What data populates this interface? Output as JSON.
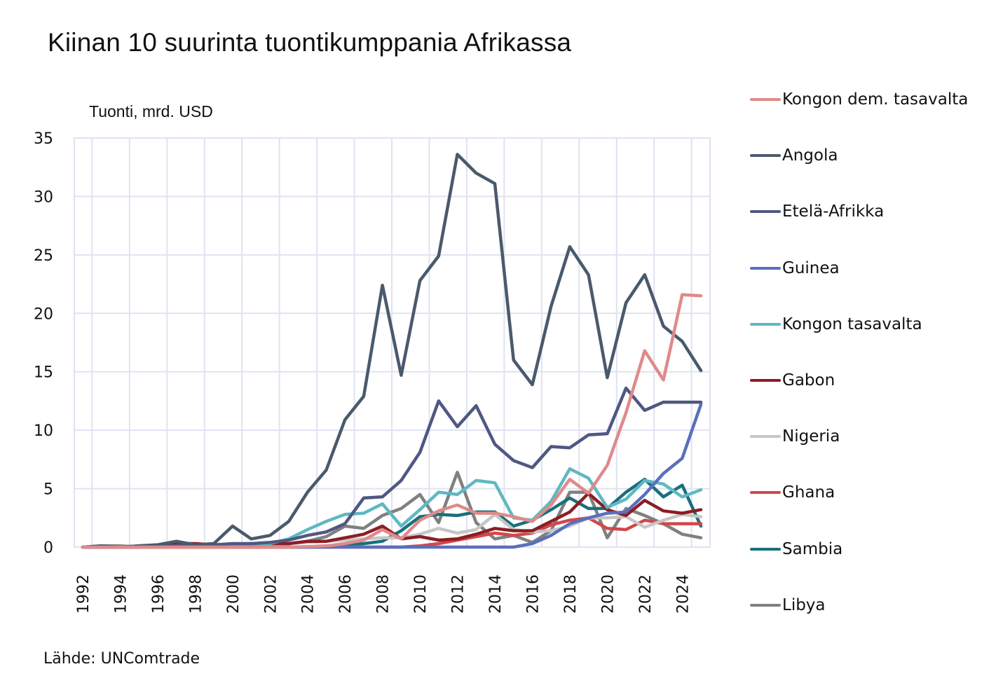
{
  "chart_data": {
    "type": "line",
    "title": "Kiinan 10 suurinta tuontikumppania Afrikassa",
    "ylabel": "Tuonti, mrd. USD",
    "xlabel": "",
    "source": "Lähde: UNComtrade",
    "ylim": [
      0,
      35
    ],
    "yticks": [
      "0",
      "5",
      "10",
      "15",
      "20",
      "25",
      "30",
      "35"
    ],
    "xlim": [
      1992,
      2025
    ],
    "xticks": [
      "1992",
      "1994",
      "1996",
      "1998",
      "2000",
      "2002",
      "2004",
      "2006",
      "2008",
      "2010",
      "2012",
      "2014",
      "2016",
      "2018",
      "2020",
      "2022",
      "2024"
    ],
    "grid": true,
    "legend_position": "right",
    "x": [
      1992,
      1993,
      1994,
      1995,
      1996,
      1997,
      1998,
      1999,
      2000,
      2001,
      2002,
      2003,
      2004,
      2005,
      2006,
      2007,
      2008,
      2009,
      2010,
      2011,
      2012,
      2013,
      2014,
      2015,
      2016,
      2017,
      2018,
      2019,
      2020,
      2021,
      2022,
      2023,
      2024,
      2025
    ],
    "series": [
      {
        "name": "Kongon dem. tasavalta",
        "color": "#e08a8a",
        "values": [
          0,
          0,
          0,
          0,
          0,
          0,
          0,
          0,
          0,
          0,
          0,
          0,
          0.05,
          0.1,
          0.3,
          0.6,
          1.5,
          0.7,
          2.3,
          3.1,
          3.6,
          2.9,
          2.9,
          2.6,
          2.2,
          3.6,
          5.8,
          4.6,
          7.0,
          11.5,
          16.8,
          14.3,
          21.6,
          21.5
        ]
      },
      {
        "name": "Angola",
        "color": "#4a5a6c",
        "values": [
          0,
          0.1,
          0,
          0.1,
          0.2,
          0.5,
          0.2,
          0.3,
          1.8,
          0.7,
          1.0,
          2.2,
          4.7,
          6.6,
          10.9,
          12.9,
          22.4,
          14.7,
          22.8,
          24.9,
          33.6,
          32.0,
          31.1,
          16.0,
          13.9,
          20.6,
          25.7,
          23.3,
          14.5,
          20.9,
          23.3,
          18.9,
          17.6,
          15.1
        ]
      },
      {
        "name": "Etelä-Afrikka",
        "color": "#4f5882",
        "values": [
          0,
          0,
          0,
          0,
          0.1,
          0.1,
          0.2,
          0.2,
          0.3,
          0.3,
          0.4,
          0.6,
          1.0,
          1.3,
          2.0,
          4.2,
          4.3,
          5.7,
          8.1,
          12.5,
          10.3,
          12.1,
          8.8,
          7.4,
          6.8,
          8.6,
          8.5,
          9.6,
          9.7,
          13.6,
          11.7,
          12.4,
          12.4,
          12.4
        ]
      },
      {
        "name": "Guinea",
        "color": "#5a6fbc",
        "values": [
          0,
          0,
          0,
          0,
          0,
          0,
          0,
          0,
          0,
          0,
          0,
          0,
          0,
          0,
          0,
          0,
          0,
          0,
          0,
          0,
          0,
          0,
          0,
          0,
          0.3,
          1.0,
          2.0,
          2.5,
          2.9,
          3.0,
          4.5,
          6.3,
          7.6,
          12.2
        ]
      },
      {
        "name": "Kongon tasavalta",
        "color": "#5fb8c2",
        "values": [
          0,
          0,
          0,
          0,
          0,
          0,
          0,
          0,
          0.2,
          0.3,
          0.3,
          0.7,
          1.5,
          2.2,
          2.8,
          2.9,
          3.7,
          1.8,
          3.2,
          4.7,
          4.5,
          5.7,
          5.5,
          2.5,
          2.3,
          3.9,
          6.7,
          5.9,
          3.4,
          4.1,
          5.7,
          5.4,
          4.3,
          4.9
        ]
      },
      {
        "name": "Gabon",
        "color": "#8b1e24",
        "values": [
          0,
          0,
          0,
          0.1,
          0.2,
          0.3,
          0.3,
          0.2,
          0.2,
          0.3,
          0.3,
          0.3,
          0.5,
          0.5,
          0.8,
          1.1,
          1.8,
          0.7,
          0.9,
          0.6,
          0.7,
          1.1,
          1.6,
          1.4,
          1.4,
          2.2,
          3.0,
          4.6,
          3.2,
          2.7,
          4.0,
          3.1,
          2.9,
          3.2
        ]
      },
      {
        "name": "Nigeria",
        "color": "#c6c6c6",
        "values": [
          0,
          0,
          0,
          0,
          0,
          0,
          0,
          0,
          0.1,
          0.1,
          0.2,
          0.3,
          0.4,
          0.5,
          0.6,
          0.7,
          0.8,
          0.8,
          1.1,
          1.6,
          1.2,
          1.5,
          2.8,
          1.5,
          1.3,
          1.4,
          1.8,
          2.5,
          2.5,
          2.6,
          1.7,
          2.3,
          2.8,
          2.6
        ]
      },
      {
        "name": "Ghana",
        "color": "#d2474a",
        "values": [
          0,
          0,
          0,
          0,
          0,
          0,
          0,
          0,
          0,
          0,
          0,
          0,
          0,
          0,
          0,
          0,
          0,
          0,
          0.1,
          0.3,
          0.6,
          0.9,
          1.2,
          1.0,
          1.2,
          1.9,
          2.3,
          2.5,
          1.6,
          1.5,
          2.3,
          2.0,
          2.0,
          2.0
        ]
      },
      {
        "name": "Sambia",
        "color": "#1a6f7c",
        "values": [
          0,
          0,
          0,
          0,
          0,
          0,
          0,
          0,
          0,
          0,
          0,
          0,
          0,
          0.1,
          0.2,
          0.3,
          0.5,
          1.4,
          2.6,
          2.8,
          2.7,
          3.0,
          3.0,
          1.8,
          2.3,
          3.2,
          4.2,
          3.3,
          3.3,
          4.7,
          5.8,
          4.3,
          5.3,
          1.8
        ]
      },
      {
        "name": "Libya",
        "color": "#808080",
        "values": [
          0,
          0.1,
          0.1,
          0,
          0.1,
          0.2,
          0.1,
          0.1,
          0.2,
          0.2,
          0.3,
          0.3,
          0.5,
          0.9,
          1.8,
          1.6,
          2.7,
          3.3,
          4.5,
          2.1,
          6.4,
          2.1,
          0.7,
          1.0,
          0.4,
          1.4,
          4.7,
          4.7,
          0.8,
          3.3,
          2.7,
          2.0,
          1.1,
          0.8
        ]
      }
    ]
  }
}
